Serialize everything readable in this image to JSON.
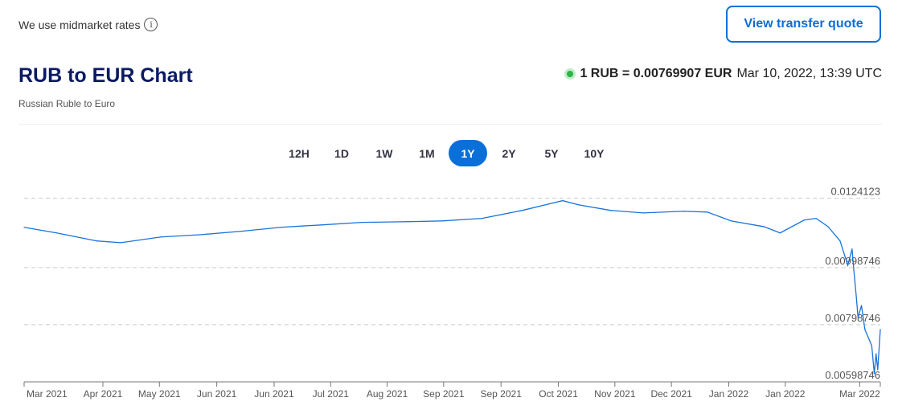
{
  "header": {
    "midmarket": "We use midmarket rates",
    "info_icon": "i",
    "quote_button": "View transfer quote"
  },
  "title": "RUB to EUR Chart",
  "subtitle": "Russian Ruble to Euro",
  "rate": {
    "text": "1 RUB = 0.00769907 EUR",
    "timestamp": "Mar 10, 2022, 13:39 UTC",
    "status_color": "#2db34a"
  },
  "tabs": [
    {
      "label": "12H"
    },
    {
      "label": "1D"
    },
    {
      "label": "1W"
    },
    {
      "label": "1M"
    },
    {
      "label": "1Y",
      "active": true
    },
    {
      "label": "2Y"
    },
    {
      "label": "5Y"
    },
    {
      "label": "10Y"
    }
  ],
  "chart_data": {
    "type": "line",
    "line_color": "#1a73d9",
    "ylim": [
      0.00598746,
      0.0126
    ],
    "y_ticks": [
      {
        "value": 0.0124123,
        "label": "0.0124123"
      },
      {
        "value": 0.00998746,
        "label": "0.00998746"
      },
      {
        "value": 0.00798746,
        "label": "0.00798746"
      },
      {
        "value": 0.00598746,
        "label": "0.00598746"
      }
    ],
    "x_ticks": [
      "Mar 2021",
      "Apr 2021",
      "May 2021",
      "Jun 2021",
      "Jun 2021",
      "Jul 2021",
      "Aug 2021",
      "Sep 2021",
      "Sep 2021",
      "Oct 2021",
      "Nov 2021",
      "Dec 2021",
      "Jan 2022",
      "Jan 2022",
      "Mar 2022"
    ],
    "x_tick_pos": [
      0.0,
      0.092,
      0.158,
      0.225,
      0.292,
      0.358,
      0.424,
      0.49,
      0.557,
      0.624,
      0.69,
      0.756,
      0.823,
      0.889,
      0.976
    ],
    "x": [
      0,
      0.038,
      0.085,
      0.113,
      0.16,
      0.207,
      0.254,
      0.301,
      0.347,
      0.394,
      0.441,
      0.488,
      0.535,
      0.582,
      0.629,
      0.648,
      0.685,
      0.723,
      0.77,
      0.798,
      0.826,
      0.864,
      0.883,
      0.911,
      0.925,
      0.939,
      0.953,
      0.962,
      0.967,
      0.969,
      0.972,
      0.974,
      0.978,
      0.982,
      0.986,
      0.99,
      0.993,
      0.995,
      0.997,
      1.0
    ],
    "values": [
      0.011396,
      0.011199,
      0.01092,
      0.01086,
      0.01106,
      0.01114,
      0.01126,
      0.0114,
      0.01148,
      0.01157,
      0.01159,
      0.01162,
      0.01171,
      0.01199,
      0.01233,
      0.01218,
      0.01199,
      0.0119,
      0.01196,
      0.01193,
      0.01162,
      0.01142,
      0.0112,
      0.01165,
      0.01171,
      0.01142,
      0.01092,
      0.01007,
      0.01064,
      0.00993,
      0.00895,
      0.00824,
      0.00866,
      0.00782,
      0.00754,
      0.00725,
      0.00627,
      0.00697,
      0.00641,
      0.00782
    ]
  }
}
